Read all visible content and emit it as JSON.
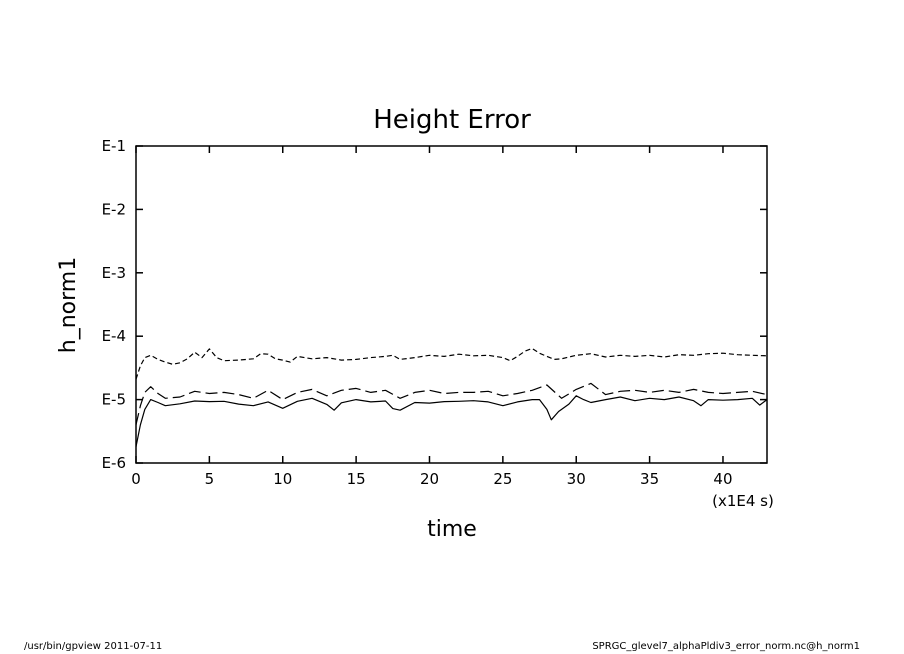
{
  "chart_data": {
    "type": "line",
    "title": "Height Error",
    "xlabel": "time",
    "ylabel": "h_norm1",
    "x_unit_label": "(x1E4 s)",
    "xlim": [
      0,
      43
    ],
    "ylim": [
      1e-06,
      0.1
    ],
    "yscale": "log",
    "x_ticks": [
      0,
      5,
      10,
      15,
      20,
      25,
      30,
      35,
      40
    ],
    "x_tick_labels": [
      "0",
      "5",
      "10",
      "15",
      "20",
      "25",
      "30",
      "35",
      "40"
    ],
    "y_ticks": [
      1e-06,
      1e-05,
      0.0001,
      0.001,
      0.01,
      0.1
    ],
    "y_tick_labels": [
      "E-6",
      "E-5",
      "E-4",
      "E-3",
      "E-2",
      "E-1"
    ],
    "grid": false,
    "series": [
      {
        "style": "dashed-short",
        "x": [
          0,
          0.3,
          0.6,
          1,
          1.5,
          2,
          2.5,
          3,
          3.5,
          4,
          4.5,
          5,
          5.5,
          6,
          7,
          8,
          8.5,
          9,
          9.5,
          10,
          10.5,
          11,
          12,
          13,
          14,
          15,
          16,
          17,
          17.5,
          18,
          19,
          20,
          21,
          22,
          23,
          24,
          25,
          25.5,
          26,
          26.5,
          27,
          27.5,
          28,
          28.5,
          29,
          30,
          31,
          32,
          33,
          34,
          35,
          36,
          37,
          38,
          39,
          40,
          41,
          42,
          43
        ],
        "y": [
          2.1e-05,
          3.4e-05,
          4.6e-05,
          5e-05,
          4.3e-05,
          3.9e-05,
          3.6e-05,
          3.8e-05,
          4.4e-05,
          5.6e-05,
          4.6e-05,
          6.3e-05,
          4.6e-05,
          4.1e-05,
          4.2e-05,
          4.4e-05,
          5.3e-05,
          5.2e-05,
          4.4e-05,
          4.2e-05,
          3.9e-05,
          4.8e-05,
          4.4e-05,
          4.6e-05,
          4.2e-05,
          4.3e-05,
          4.6e-05,
          4.8e-05,
          5e-05,
          4.3e-05,
          4.6e-05,
          5e-05,
          4.8e-05,
          5.2e-05,
          4.9e-05,
          5e-05,
          4.6e-05,
          4.1e-05,
          4.8e-05,
          5.8e-05,
          6.4e-05,
          5.4e-05,
          4.8e-05,
          4.3e-05,
          4.4e-05,
          5e-05,
          5.3e-05,
          4.7e-05,
          5e-05,
          4.8e-05,
          5e-05,
          4.7e-05,
          5.1e-05,
          5e-05,
          5.3e-05,
          5.4e-05,
          5.1e-05,
          5e-05,
          4.9e-05
        ]
      },
      {
        "style": "dashed-long",
        "x": [
          0,
          0.3,
          0.6,
          1,
          1.5,
          2,
          3,
          4,
          5,
          6,
          7,
          8,
          9,
          10,
          11,
          12,
          13,
          14,
          15,
          16,
          17,
          18,
          19,
          20,
          21,
          22,
          23,
          24,
          25,
          26,
          27,
          28,
          29,
          30,
          31,
          32,
          33,
          34,
          35,
          36,
          37,
          38,
          39,
          40,
          41,
          42,
          43
        ],
        "y": [
          4e-06,
          8e-06,
          1.3e-05,
          1.6e-05,
          1.25e-05,
          1.05e-05,
          1.1e-05,
          1.35e-05,
          1.25e-05,
          1.3e-05,
          1.2e-05,
          1.05e-05,
          1.4e-05,
          1e-05,
          1.3e-05,
          1.45e-05,
          1.15e-05,
          1.4e-05,
          1.5e-05,
          1.3e-05,
          1.4e-05,
          1.05e-05,
          1.3e-05,
          1.4e-05,
          1.25e-05,
          1.3e-05,
          1.3e-05,
          1.35e-05,
          1.15e-05,
          1.25e-05,
          1.4e-05,
          1.7e-05,
          1.05e-05,
          1.45e-05,
          1.8e-05,
          1.2e-05,
          1.35e-05,
          1.4e-05,
          1.3e-05,
          1.4e-05,
          1.3e-05,
          1.45e-05,
          1.3e-05,
          1.25e-05,
          1.3e-05,
          1.35e-05,
          1.2e-05
        ]
      },
      {
        "style": "solid",
        "x": [
          0,
          0.3,
          0.6,
          1,
          1.5,
          2,
          3,
          4,
          5,
          6,
          7,
          8,
          9,
          10,
          11,
          12,
          13,
          13.5,
          14,
          15,
          16,
          17,
          17.5,
          18,
          19,
          20,
          21,
          22,
          23,
          24,
          25,
          26,
          27,
          27.5,
          28,
          28.3,
          28.8,
          29.5,
          30,
          30.5,
          31,
          32,
          33,
          34,
          35,
          36,
          37,
          38,
          38.5,
          39,
          40,
          41,
          42,
          42.5,
          43
        ],
        "y": [
          1.8e-06,
          4e-06,
          7e-06,
          1e-05,
          9e-06,
          8e-06,
          8.6e-06,
          9.5e-06,
          9.3e-06,
          9.4e-06,
          8.5e-06,
          8e-06,
          9.2e-06,
          7.3e-06,
          9.4e-06,
          1.05e-05,
          8.4e-06,
          6.8e-06,
          8.9e-06,
          1e-05,
          9.2e-06,
          9.5e-06,
          7.2e-06,
          6.8e-06,
          9e-06,
          8.8e-06,
          9.3e-06,
          9.4e-06,
          9.6e-06,
          9.2e-06,
          8e-06,
          9.2e-06,
          1e-05,
          1e-05,
          7e-06,
          4.8e-06,
          6.5e-06,
          8.5e-06,
          1.15e-05,
          1e-05,
          9e-06,
          1e-05,
          1.1e-05,
          9.6e-06,
          1.05e-05,
          1e-05,
          1.1e-05,
          9.6e-06,
          8e-06,
          1e-05,
          9.8e-06,
          1e-05,
          1.05e-05,
          8.2e-06,
          1e-05
        ]
      }
    ]
  },
  "footer": {
    "left": "/usr/bin/gpview   2011-07-11",
    "right": "SPRGC_glevel7_alphaPldiv3_error_norm.nc@h_norm1"
  }
}
